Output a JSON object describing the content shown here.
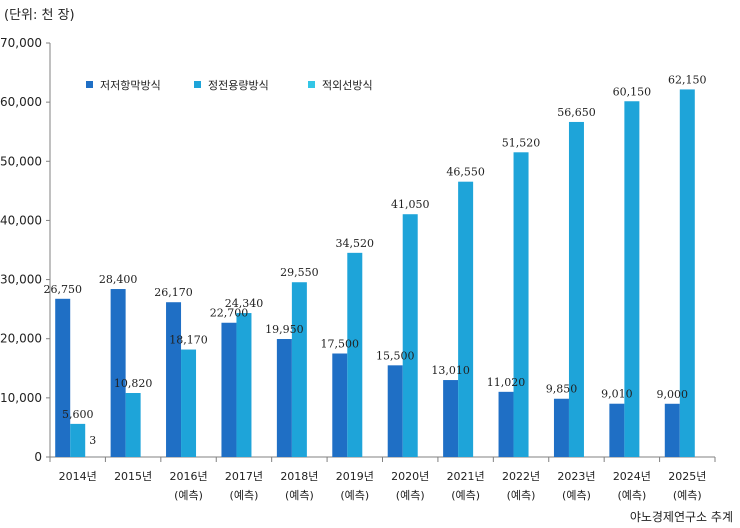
{
  "unit_label": "(단위: 천 장)",
  "source": "야노경제연구소 추계",
  "chart_data": {
    "type": "bar",
    "categories": [
      "2014년",
      "2015년",
      "2016년",
      "2017년",
      "2018년",
      "2019년",
      "2020년",
      "2021년",
      "2022년",
      "2023년",
      "2024년",
      "2025년"
    ],
    "category_notes": [
      "",
      "",
      "(예측)",
      "(예측)",
      "(예측)",
      "(예측)",
      "(예측)",
      "(예측)",
      "(예측)",
      "(예측)",
      "(예측)",
      "(예측)"
    ],
    "series": [
      {
        "name": "저저항막방식",
        "color": "#1f6fc5",
        "values": [
          26750,
          28400,
          26170,
          22700,
          19950,
          17500,
          15500,
          13010,
          11020,
          9850,
          9010,
          9000
        ]
      },
      {
        "name": "정전용량방식",
        "color": "#1ea4d9",
        "values": [
          5600,
          10820,
          18170,
          24340,
          29550,
          34520,
          41050,
          46550,
          51520,
          56650,
          60150,
          62150
        ]
      },
      {
        "name": "적외선방식",
        "color": "#33c6e6",
        "values": [
          3,
          null,
          null,
          null,
          null,
          null,
          null,
          null,
          null,
          null,
          null,
          null
        ]
      }
    ],
    "data_labels": [
      [
        "26,750",
        "28,400",
        "26,170",
        "22,700",
        "19,950",
        "17,500",
        "15,500",
        "13,010",
        "11,020",
        "9,850",
        "9,010",
        "9,000"
      ],
      [
        "5,600",
        "10,820",
        "18,170",
        "24,340",
        "29,550",
        "34,520",
        "41,050",
        "46,550",
        "51,520",
        "56,650",
        "60,150",
        "62,150"
      ],
      [
        "3",
        "",
        "",
        "",
        "",
        "",
        "",
        "",
        "",
        "",
        "",
        ""
      ]
    ],
    "yticks": [
      "0",
      "10,000",
      "20,000",
      "30,000",
      "40,000",
      "50,000",
      "60,000",
      "70,000"
    ],
    "ylim": [
      0,
      70000
    ],
    "legend_position": "top-left",
    "grid": false
  }
}
